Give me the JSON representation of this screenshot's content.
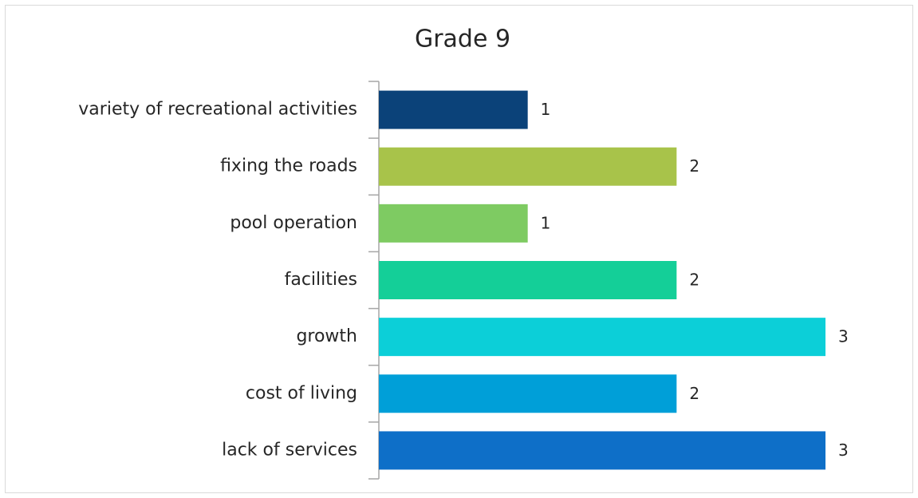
{
  "chart_data": {
    "type": "bar",
    "orientation": "horizontal",
    "title": "Grade 9",
    "categories": [
      "variety of recreational activities",
      "fixing the roads",
      "pool operation",
      "facilities",
      "growth",
      "cost of living",
      "lack of services"
    ],
    "values": [
      1,
      2,
      1,
      2,
      3,
      2,
      3
    ],
    "colors": [
      "#0b4279",
      "#a8c34a",
      "#7ecb62",
      "#14cf98",
      "#0ccfd8",
      "#009fd8",
      "#0e6fc8"
    ],
    "xlim": [
      0,
      3
    ]
  }
}
